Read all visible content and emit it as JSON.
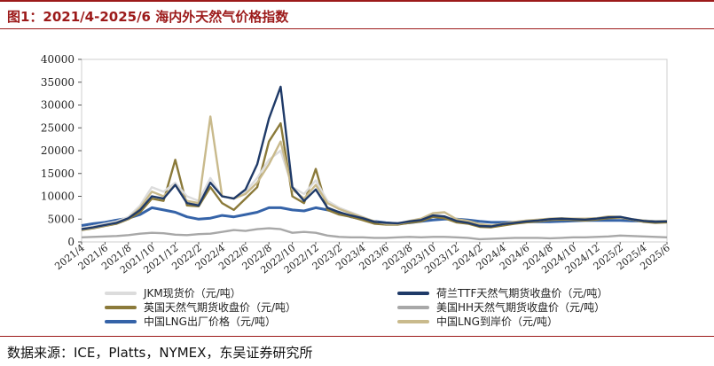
{
  "header": {
    "title": "图1：2021/4-2025/6 海内外天然气价格指数"
  },
  "footer": {
    "source": "数据来源：ICE，Platts，NYMEX，东吴证券研究所"
  },
  "chart_data": {
    "type": "line",
    "title": "",
    "xlabel": "",
    "ylabel": "",
    "ylim": [
      0,
      40000
    ],
    "yticks": [
      0,
      5000,
      10000,
      15000,
      20000,
      25000,
      30000,
      35000,
      40000
    ],
    "x_tick_labels": [
      "2021/4",
      "2021/6",
      "2021/8",
      "2021/10",
      "2021/12",
      "2022/2",
      "2022/4",
      "2022/6",
      "2022/8",
      "2022/10",
      "2022/12",
      "2023/2",
      "2023/4",
      "2023/6",
      "2023/8",
      "2023/10",
      "2023/12",
      "2024/2",
      "2024/4",
      "2024/6",
      "2024/8",
      "2024/10",
      "2024/12",
      "2025/2",
      "2025/4",
      "2025/6"
    ],
    "grid": false,
    "legend_position": "bottom",
    "x_months": [
      "2021/4",
      "2021/5",
      "2021/6",
      "2021/7",
      "2021/8",
      "2021/9",
      "2021/10",
      "2021/11",
      "2021/12",
      "2022/1",
      "2022/2",
      "2022/3",
      "2022/4",
      "2022/5",
      "2022/6",
      "2022/7",
      "2022/8",
      "2022/9",
      "2022/10",
      "2022/11",
      "2022/12",
      "2023/1",
      "2023/2",
      "2023/3",
      "2023/4",
      "2023/5",
      "2023/6",
      "2023/7",
      "2023/8",
      "2023/9",
      "2023/10",
      "2023/11",
      "2023/12",
      "2024/1",
      "2024/2",
      "2024/3",
      "2024/4",
      "2024/5",
      "2024/6",
      "2024/7",
      "2024/8",
      "2024/9",
      "2024/10",
      "2024/11",
      "2024/12",
      "2025/1",
      "2025/2",
      "2025/3",
      "2025/4",
      "2025/5",
      "2025/6"
    ],
    "series": [
      {
        "name": "JKM现货价（元/吨）",
        "color": "#dcdcdc",
        "values": [
          3000,
          3500,
          4000,
          4500,
          5500,
          8000,
          12000,
          11000,
          13000,
          10000,
          9000,
          14000,
          10000,
          9500,
          11000,
          14000,
          18000,
          20000,
          12000,
          10500,
          13500,
          9000,
          7500,
          6500,
          5500,
          4500,
          4000,
          4000,
          4500,
          5000,
          6000,
          6500,
          5000,
          4500,
          3800,
          3500,
          3900,
          4300,
          4600,
          4700,
          5000,
          5100,
          5000,
          5000,
          5100,
          5500,
          5400,
          5000,
          4600,
          4500,
          4600
        ]
      },
      {
        "name": "荷兰TTF天然气期货收盘价（元/吨）",
        "color": "#1f3a68",
        "values": [
          2800,
          3200,
          3700,
          4200,
          5200,
          7000,
          10000,
          9500,
          12500,
          8500,
          8000,
          13000,
          10000,
          9500,
          11500,
          17000,
          27000,
          34000,
          12000,
          9000,
          11500,
          7500,
          6500,
          5800,
          5200,
          4400,
          4200,
          4100,
          4500,
          4800,
          5800,
          5600,
          4600,
          4200,
          3500,
          3400,
          3900,
          4200,
          4500,
          4700,
          5000,
          5100,
          5000,
          4900,
          5100,
          5400,
          5500,
          5000,
          4600,
          4400,
          4500
        ]
      },
      {
        "name": "英国天然气期货收盘价（元/吨）",
        "color": "#8b7a3a",
        "values": [
          2600,
          3000,
          3500,
          4000,
          5000,
          6500,
          9500,
          9000,
          18000,
          8000,
          7800,
          12000,
          8500,
          7000,
          9500,
          12000,
          22000,
          26000,
          10000,
          8500,
          16000,
          7000,
          6000,
          5500,
          4800,
          4000,
          3800,
          3800,
          4200,
          4500,
          5500,
          5200,
          4300,
          4000,
          3300,
          3200,
          3600,
          4000,
          4300,
          4500,
          4800,
          4900,
          4800,
          4700,
          4900,
          5200,
          5300,
          4900,
          4400,
          4200,
          4300
        ]
      },
      {
        "name": "美国HH天然气期货收盘价（元/吨）",
        "color": "#a8a8a8",
        "values": [
          1000,
          1100,
          1200,
          1300,
          1500,
          1800,
          2000,
          1900,
          1600,
          1500,
          1700,
          1800,
          2200,
          2600,
          2400,
          2800,
          3000,
          2800,
          2000,
          2200,
          2000,
          1400,
          1100,
          1000,
          1000,
          900,
          900,
          1000,
          1100,
          1000,
          1100,
          1100,
          1000,
          900,
          600,
          700,
          800,
          900,
          900,
          900,
          800,
          900,
          1000,
          1000,
          1100,
          1200,
          1400,
          1300,
          1200,
          1100,
          1000
        ]
      },
      {
        "name": "中国LNG出厂价格（元/吨）",
        "color": "#3563a8",
        "values": [
          3600,
          4000,
          4300,
          4800,
          5200,
          6000,
          7500,
          7000,
          6500,
          5500,
          5000,
          5200,
          5800,
          5500,
          6000,
          6500,
          7500,
          7500,
          7000,
          6800,
          7500,
          7000,
          6500,
          5500,
          5000,
          4500,
          4200,
          4000,
          4200,
          4500,
          4800,
          5000,
          5000,
          4800,
          4500,
          4300,
          4300,
          4300,
          4400,
          4400,
          4400,
          4500,
          4600,
          4700,
          4700,
          4700,
          4700,
          4600,
          4600,
          4500,
          4500
        ]
      },
      {
        "name": "中国LNG到岸价（元/吨）",
        "color": "#c9ba8c",
        "values": [
          2700,
          3100,
          3600,
          4200,
          5100,
          7500,
          11000,
          10000,
          12500,
          9000,
          8500,
          27500,
          10000,
          9500,
          10500,
          13000,
          17000,
          22000,
          11500,
          9500,
          12500,
          8500,
          7200,
          6300,
          5400,
          4500,
          4000,
          4000,
          4600,
          5100,
          6300,
          6500,
          5000,
          4600,
          3900,
          3600,
          4000,
          4400,
          4700,
          4900,
          5100,
          5200,
          5100,
          5100,
          5200,
          5600,
          5500,
          5000,
          4700,
          4500,
          4600
        ]
      }
    ]
  }
}
